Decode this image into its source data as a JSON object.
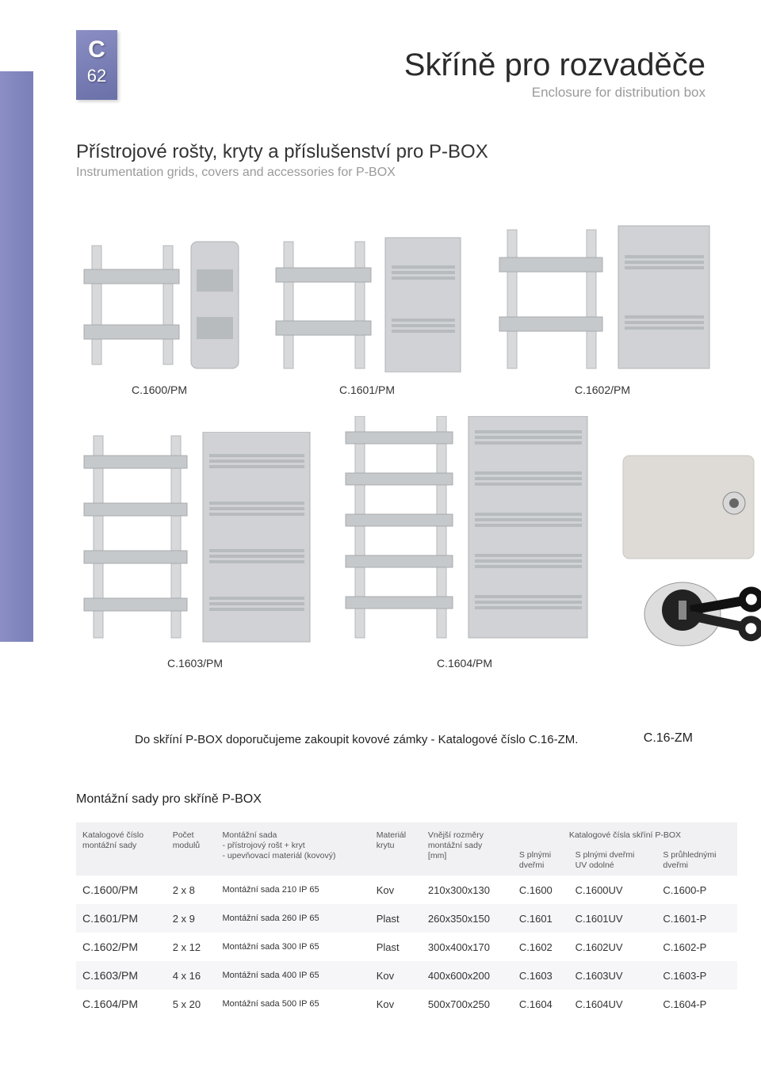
{
  "badge": {
    "letter": "C",
    "number": "62"
  },
  "title": {
    "main": "Skříně pro rozvaděče",
    "sub": "Enclosure for distribution box"
  },
  "section": {
    "cz": "Přístrojové rošty, kryty a příslušenství pro P-BOX",
    "en": "Instrumentation grids, covers and accessories for P-BOX"
  },
  "products_row1": [
    {
      "code": "C.1600/PM"
    },
    {
      "code": "C.1601/PM"
    },
    {
      "code": "C.1602/PM"
    }
  ],
  "products_row2": [
    {
      "code": "C.1603/PM"
    },
    {
      "code": "C.1604/PM"
    }
  ],
  "note": "Do skříní P-BOX doporučujeme zakoupit kovové zámky - Katalogové číslo  C.16-ZM.",
  "lock_label": "C.16-ZM",
  "table": {
    "title": "Montážní sady pro skříně P-BOX",
    "group_header": "Katalogové čísla skříní P-BOX",
    "headers": {
      "col1": "Katalogové číslo\nmontážní sady",
      "col2": "Počet\nmodulů",
      "col3": "Montážní sada\n- přístrojový rošt + kryt\n- upevňovací materiál (kovový)",
      "col4": "Materiál\nkrytu",
      "col5": "Vnější rozměry\nmontážní sady\n[mm]",
      "col6": "S plnými\ndveřmi",
      "col7": "S plnými dveřmi\nUV odolné",
      "col8": "S průhlednými\ndveřmi"
    },
    "rows": [
      [
        "C.1600/PM",
        "2 x 8",
        "Montážní sada 210 IP 65",
        "Kov",
        "210x300x130",
        "C.1600",
        "C.1600UV",
        "C.1600-P"
      ],
      [
        "C.1601/PM",
        "2 x 9",
        "Montážní sada 260 IP 65",
        "Plast",
        "260x350x150",
        "C.1601",
        "C.1601UV",
        "C.1601-P"
      ],
      [
        "C.1602/PM",
        "2 x 12",
        "Montážní sada 300 IP 65",
        "Plast",
        "300x400x170",
        "C.1602",
        "C.1602UV",
        "C.1602-P"
      ],
      [
        "C.1603/PM",
        "4 x 16",
        "Montážní sada 400 IP 65",
        "Kov",
        "400x600x200",
        "C.1603",
        "C.1603UV",
        "C.1603-P"
      ],
      [
        "C.1604/PM",
        "5 x 20",
        "Montážní sada 500 IP 65",
        "Kov",
        "500x700x250",
        "C.1604",
        "C.1604UV",
        "C.1604-P"
      ]
    ]
  },
  "colors": {
    "accent": "#7a80b8",
    "text": "#333333",
    "muted": "#9a9a9a",
    "row_alt": "#f6f6f8",
    "thead_bg": "#f1f1f3"
  }
}
